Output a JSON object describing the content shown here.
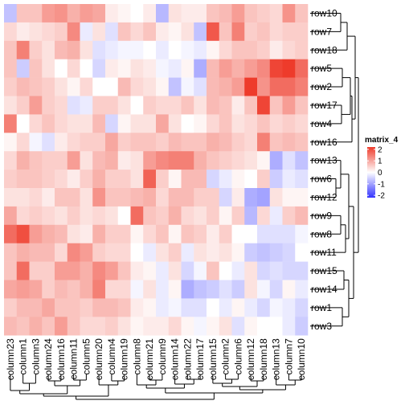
{
  "chart_data": {
    "type": "heatmap",
    "legend": {
      "title": "matrix_4",
      "ticks": [
        2,
        1,
        0,
        -1,
        -2
      ],
      "range": [
        -2.2,
        2.2
      ],
      "placement": "right"
    },
    "colors": {
      "high": "#ee3b2b",
      "mid": "#ffffff",
      "low": "#3333ff"
    },
    "rows": [
      "row10",
      "row7",
      "row18",
      "row5",
      "row2",
      "row17",
      "row4",
      "row16",
      "row13",
      "row6",
      "row12",
      "row9",
      "row8",
      "row11",
      "row15",
      "row14",
      "row1",
      "row3"
    ],
    "columns": [
      "column23",
      "column1",
      "column3",
      "column24",
      "column16",
      "column11",
      "column5",
      "column20",
      "column4",
      "column19",
      "column8",
      "column21",
      "column9",
      "column14",
      "column22",
      "column17",
      "column15",
      "column2",
      "column6",
      "column12",
      "column18",
      "column13",
      "column7",
      "column10"
    ],
    "values": [
      [
        -0.6,
        0.6,
        0.6,
        1.0,
        1.1,
        0.8,
        1.0,
        0.9,
        0.2,
        0.1,
        0.0,
        0.2,
        -0.7,
        0.3,
        0.2,
        0.2,
        0.6,
        0.7,
        1.0,
        0.6,
        0.5,
        0.4,
        1.1,
        0.6
      ],
      [
        0.4,
        0.2,
        0.3,
        0.4,
        0.5,
        1.2,
        -0.2,
        0.3,
        -0.3,
        0.6,
        0.4,
        0.6,
        0.2,
        0.1,
        0.3,
        -0.6,
        1.7,
        0.6,
        1.3,
        0.5,
        0.6,
        0.4,
        0.5,
        0.5
      ],
      [
        0.6,
        1.3,
        0.5,
        0.3,
        0.7,
        0.8,
        0.3,
        -0.3,
        -0.2,
        -0.1,
        -0.1,
        0.0,
        -0.2,
        0.0,
        -0.1,
        -0.2,
        0.1,
        0.4,
        0.6,
        0.6,
        0.5,
        0.2,
        0.4,
        0.5
      ],
      [
        0.6,
        -0.5,
        0.6,
        0.3,
        0.0,
        0.4,
        0.0,
        -0.4,
        0.2,
        0.1,
        0.3,
        0.2,
        -0.1,
        -0.2,
        0.1,
        -0.8,
        0.7,
        1.0,
        0.8,
        1.0,
        1.2,
        1.9,
        2.0,
        1.5
      ],
      [
        0.5,
        0.7,
        0.6,
        0.5,
        0.3,
        0.1,
        0.4,
        0.0,
        0.0,
        0.7,
        0.4,
        0.3,
        0.1,
        -0.6,
        -0.1,
        -0.3,
        0.7,
        0.8,
        1.0,
        2.0,
        1.1,
        1.5,
        1.5,
        1.3
      ],
      [
        0.3,
        0.5,
        1.0,
        0.5,
        0.4,
        -0.3,
        -0.2,
        0.5,
        0.5,
        0.3,
        0.0,
        0.5,
        0.4,
        0.4,
        0.6,
        0.3,
        0.7,
        0.6,
        0.2,
        0.6,
        1.9,
        0.6,
        1.0,
        0.6
      ],
      [
        1.3,
        0.0,
        0.4,
        0.6,
        0.4,
        0.3,
        0.3,
        0.7,
        -0.4,
        0.1,
        0.3,
        0.3,
        0.9,
        0.3,
        0.0,
        0.1,
        0.4,
        0.6,
        0.3,
        0.4,
        0.6,
        0.4,
        0.5,
        0.4
      ],
      [
        0.1,
        0.4,
        -0.1,
        -0.3,
        0.2,
        0.4,
        0.5,
        0.5,
        0.9,
        0.5,
        0.6,
        0.6,
        0.5,
        0.7,
        0.6,
        0.6,
        0.8,
        0.7,
        0.5,
        0.4,
        1.3,
        0.6,
        0.7,
        0.6
      ],
      [
        0.4,
        0.8,
        0.6,
        0.5,
        0.5,
        1.0,
        0.3,
        0.7,
        0.8,
        0.2,
        0.3,
        1.0,
        1.2,
        1.3,
        1.3,
        0.8,
        0.6,
        0.5,
        0.4,
        0.3,
        0.1,
        -0.8,
        -0.3,
        -0.6
      ],
      [
        0.5,
        0.6,
        0.6,
        0.5,
        0.4,
        0.2,
        0.5,
        0.8,
        0.5,
        0.5,
        0.3,
        1.6,
        0.5,
        0.1,
        0.7,
        0.7,
        -0.4,
        -0.2,
        0.1,
        0.0,
        0.5,
        -0.5,
        -0.2,
        -0.3
      ],
      [
        0.3,
        0.3,
        0.4,
        0.2,
        0.6,
        0.6,
        0.3,
        1.1,
        0.6,
        0.6,
        0.7,
        0.8,
        0.4,
        0.7,
        0.7,
        0.5,
        0.5,
        -0.4,
        0.2,
        -0.8,
        -0.9,
        0.3,
        0.1,
        0.1
      ],
      [
        0.9,
        0.4,
        0.5,
        0.4,
        0.3,
        0.5,
        0.3,
        0.4,
        0.3,
        0.0,
        1.5,
        0.6,
        0.5,
        0.8,
        0.4,
        0.3,
        0.5,
        0.1,
        0.5,
        -0.7,
        0.4,
        -0.2,
        0.5,
        0.7
      ],
      [
        1.5,
        1.8,
        1.0,
        0.8,
        0.7,
        0.3,
        0.2,
        0.8,
        0.5,
        0.5,
        0.1,
        0.4,
        0.6,
        0.1,
        0.6,
        0.5,
        0.2,
        0.5,
        0.0,
        0.0,
        -0.3,
        -0.3,
        -0.3,
        -0.1
      ],
      [
        0.6,
        0.8,
        0.7,
        0.7,
        0.4,
        1.2,
        1.0,
        0.5,
        0.4,
        0.4,
        0.0,
        -0.2,
        0.3,
        0.5,
        -0.2,
        0.3,
        0.2,
        0.3,
        0.1,
        -0.5,
        -0.6,
        -0.5,
        -0.4,
        0.0
      ],
      [
        0.6,
        1.5,
        0.5,
        0.5,
        1.0,
        1.0,
        0.8,
        1.2,
        1.0,
        0.6,
        0.2,
        0.1,
        -0.2,
        0.3,
        -0.4,
        -0.1,
        0.6,
        0.0,
        -0.2,
        0.3,
        -0.4,
        -0.3,
        -0.4,
        -0.4
      ],
      [
        0.9,
        1.0,
        0.9,
        0.5,
        0.7,
        0.6,
        0.8,
        1.3,
        0.4,
        0.4,
        -0.1,
        0.3,
        -0.2,
        0.1,
        -0.8,
        -0.6,
        -0.5,
        -0.3,
        -0.5,
        0.3,
        -0.1,
        -0.4,
        0.1,
        -0.2
      ],
      [
        0.5,
        0.7,
        0.7,
        0.9,
        0.6,
        0.6,
        0.5,
        0.7,
        0.7,
        0.6,
        0.2,
        0.1,
        -0.2,
        -0.1,
        -0.3,
        -0.3,
        0.0,
        -0.2,
        0.1,
        -0.2,
        -0.4,
        -0.1,
        -0.2,
        -0.4
      ],
      [
        0.7,
        0.6,
        0.8,
        0.6,
        1.0,
        0.6,
        0.4,
        0.4,
        0.5,
        0.3,
        0.1,
        0.2,
        0.2,
        0.4,
        0.1,
        -0.1,
        0.1,
        0.3,
        -0.3,
        0.1,
        0.0,
        0.0,
        -0.2,
        -0.5
      ]
    ]
  }
}
